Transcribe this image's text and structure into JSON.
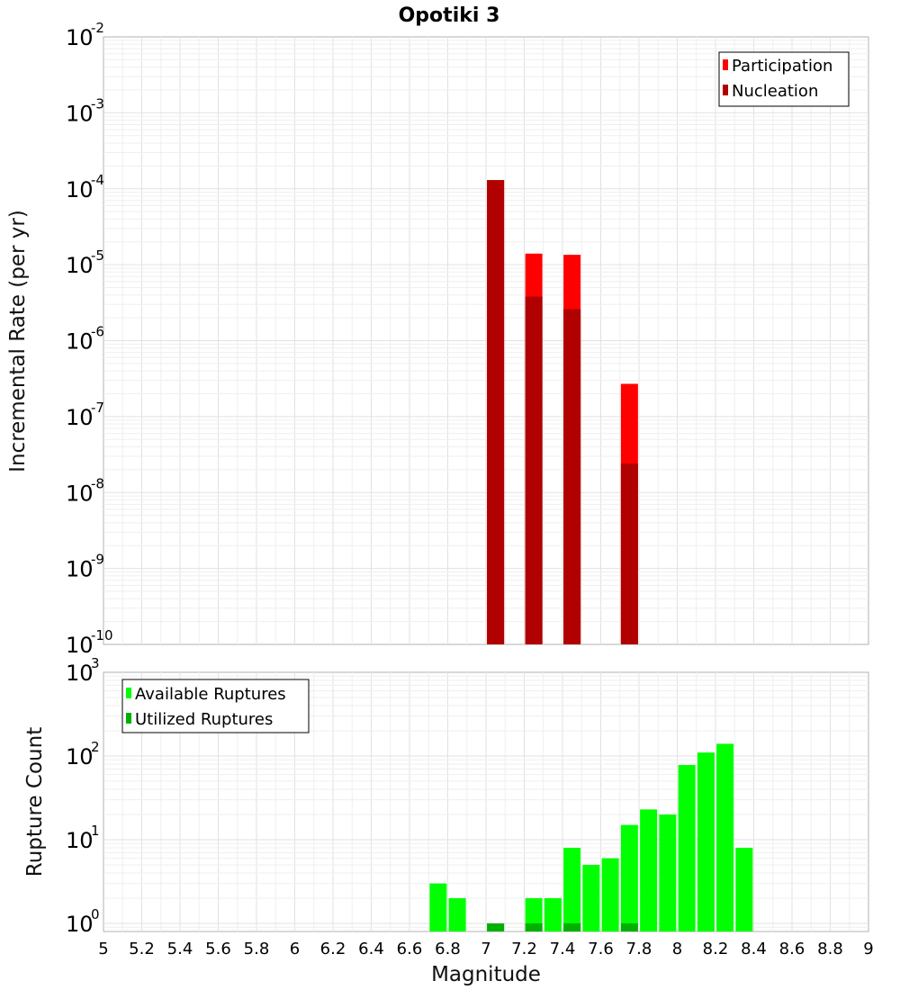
{
  "chart_data": [
    {
      "type": "bar",
      "title": "Opotiki 3",
      "xlabel": "",
      "ylabel": "Incremental Rate (per yr)",
      "y_scale": "log",
      "ylim": [
        1e-10,
        0.01
      ],
      "xlim": [
        5,
        9
      ],
      "grid": true,
      "legend_placement": "top-right",
      "x": [
        7.05,
        7.25,
        7.45,
        7.75
      ],
      "series": [
        {
          "name": "Participation",
          "color": "#ff0000",
          "values": [
            0.00013,
            1.4e-05,
            1.35e-05,
            2.7e-07
          ]
        },
        {
          "name": "Nucleation",
          "color": "#b00000",
          "values": [
            0.00013,
            3.8e-06,
            2.6e-06,
            2.4e-08
          ]
        }
      ],
      "y_ticks": [
        {
          "base": "10",
          "exp": "-10"
        },
        {
          "base": "10",
          "exp": "-9"
        },
        {
          "base": "10",
          "exp": "-8"
        },
        {
          "base": "10",
          "exp": "-7"
        },
        {
          "base": "10",
          "exp": "-6"
        },
        {
          "base": "10",
          "exp": "-5"
        },
        {
          "base": "10",
          "exp": "-4"
        },
        {
          "base": "10",
          "exp": "-3"
        },
        {
          "base": "10",
          "exp": "-2"
        }
      ]
    },
    {
      "type": "bar",
      "title": "",
      "xlabel": "Magnitude",
      "ylabel": "Rupture Count",
      "y_scale": "log",
      "ylim": [
        0.8,
        1000
      ],
      "xlim": [
        5,
        9
      ],
      "grid": true,
      "legend_placement": "top-left",
      "x": [
        6.75,
        6.85,
        6.95,
        7.05,
        7.15,
        7.25,
        7.35,
        7.45,
        7.55,
        7.65,
        7.75,
        7.85,
        7.95,
        8.05,
        8.15,
        8.25,
        8.35
      ],
      "series": [
        {
          "name": "Available Ruptures",
          "color": "#00ff00",
          "values": [
            3,
            2,
            null,
            1,
            null,
            2,
            2,
            8,
            5,
            6,
            15,
            23,
            20,
            78,
            110,
            140,
            8
          ]
        },
        {
          "name": "Utilized Ruptures",
          "color": "#00b000",
          "values": [
            null,
            null,
            null,
            1,
            null,
            1,
            null,
            1,
            null,
            null,
            1,
            null,
            null,
            null,
            null,
            null,
            null
          ]
        }
      ],
      "y_ticks": [
        {
          "base": "10",
          "exp": "0"
        },
        {
          "base": "10",
          "exp": "1"
        },
        {
          "base": "10",
          "exp": "2"
        },
        {
          "base": "10",
          "exp": "3"
        }
      ],
      "x_ticks": [
        "5",
        "5.2",
        "5.4",
        "5.6",
        "5.8",
        "6",
        "6.2",
        "6.4",
        "6.6",
        "6.8",
        "7",
        "7.2",
        "7.4",
        "7.6",
        "7.8",
        "8",
        "8.2",
        "8.4",
        "8.6",
        "8.8",
        "9"
      ]
    }
  ]
}
